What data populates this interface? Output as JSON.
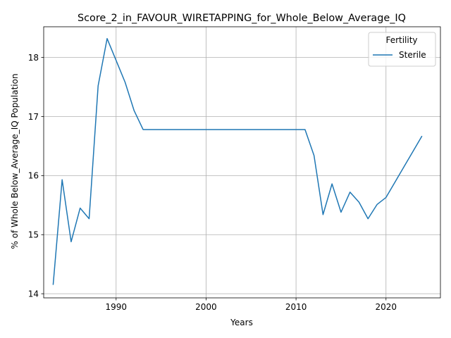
{
  "chart_data": {
    "type": "line",
    "title": "Score_2_in_FAVOUR_WIRETAPPING_for_Whole_Below_Average_IQ",
    "xlabel": "Years",
    "ylabel": "% of Whole Below_Average_IQ Population",
    "xlim": [
      1981.95,
      2026.05
    ],
    "ylim": [
      13.93,
      18.52
    ],
    "xticks": [
      1990,
      2000,
      2010,
      2020
    ],
    "yticks": [
      14,
      15,
      16,
      17,
      18
    ],
    "grid": true,
    "legend_title": "Fertility",
    "legend_position": "top-right",
    "series": [
      {
        "name": "Sterile",
        "color": "#1f77b4",
        "x": [
          1983,
          1984,
          1985,
          1986,
          1987,
          1988,
          1989,
          1990,
          1991,
          1992,
          1993,
          1994,
          1995,
          1996,
          1997,
          1998,
          1999,
          2000,
          2001,
          2002,
          2003,
          2004,
          2005,
          2006,
          2007,
          2008,
          2009,
          2010,
          2011,
          2012,
          2013,
          2014,
          2015,
          2016,
          2017,
          2018,
          2019,
          2020,
          2021,
          2022,
          2023,
          2024
        ],
        "y": [
          14.15,
          15.93,
          14.88,
          15.45,
          15.27,
          17.52,
          18.32,
          17.95,
          17.58,
          17.1,
          16.78,
          16.78,
          16.78,
          16.78,
          16.78,
          16.78,
          16.78,
          16.78,
          16.78,
          16.78,
          16.78,
          16.78,
          16.78,
          16.78,
          16.78,
          16.78,
          16.78,
          16.78,
          16.78,
          16.34,
          15.34,
          15.86,
          15.38,
          15.72,
          15.55,
          15.27,
          15.51,
          15.63,
          15.89,
          16.15,
          16.41,
          16.67
        ]
      }
    ]
  }
}
